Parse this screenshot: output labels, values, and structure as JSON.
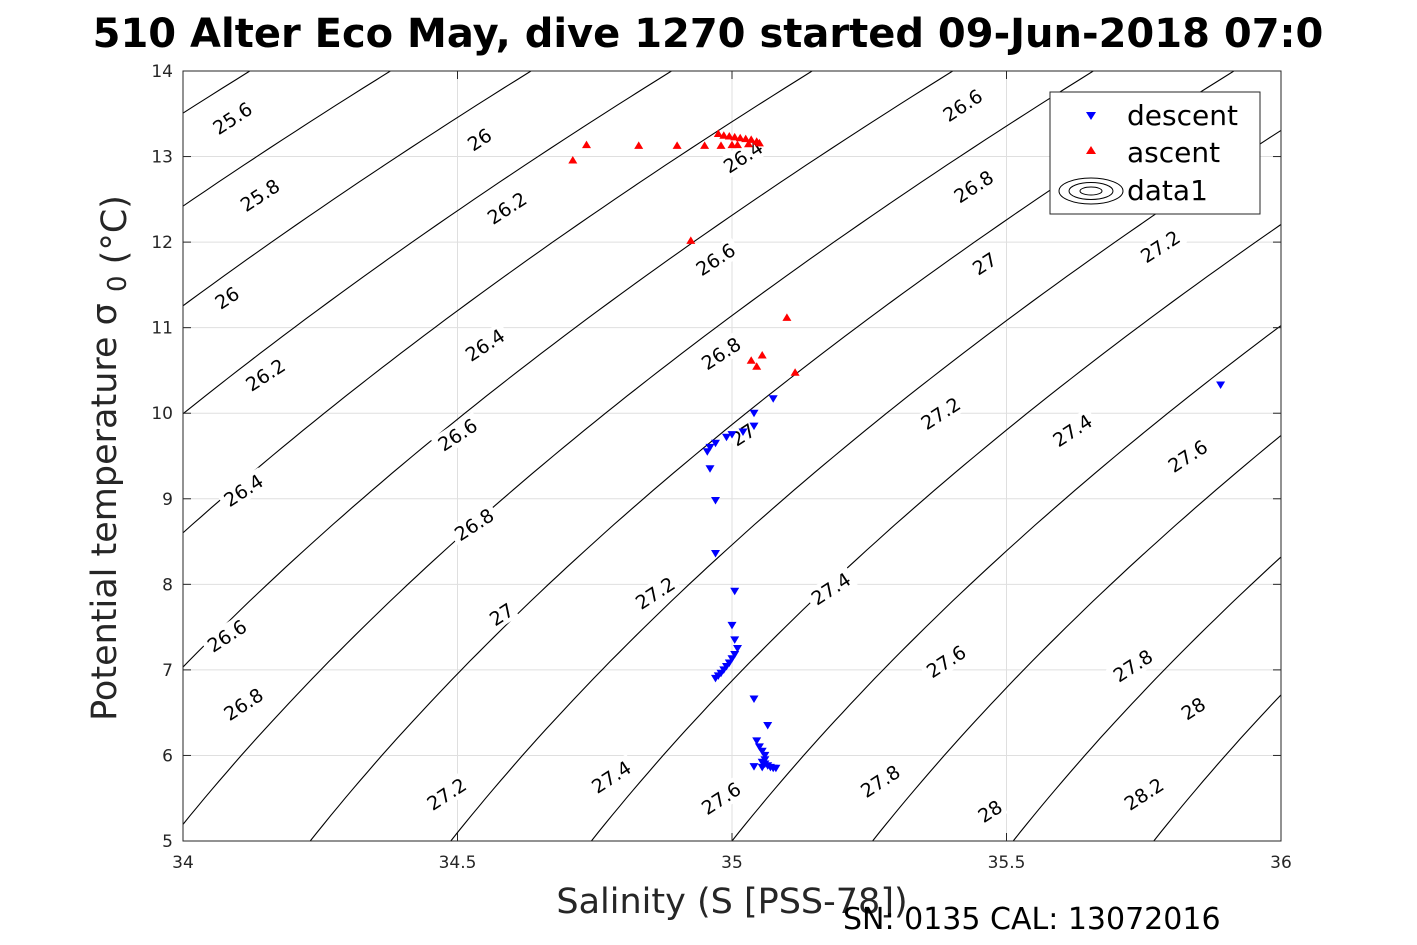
{
  "chart_data": {
    "type": "scatter",
    "title": "510 Alter Eco May, dive 1270 started 09-Jun-2018 07:0",
    "xlabel": "Salinity (S [PSS-78])",
    "ylabel": "Potential temperature",
    "ylabel_symbol": "σ",
    "ylabel_subscript": "0",
    "ylabel_unit": "(°C)",
    "footer": "SN: 0135  CAL: 13072016",
    "xlim": [
      34,
      36
    ],
    "ylim": [
      5,
      14
    ],
    "xticks": [
      34,
      34.5,
      35,
      35.5,
      36
    ],
    "xtick_labels": [
      "34",
      "34.5",
      "35",
      "35.5",
      "36"
    ],
    "yticks": [
      5,
      6,
      7,
      8,
      9,
      10,
      11,
      12,
      13,
      14
    ],
    "ytick_labels": [
      "5",
      "6",
      "7",
      "8",
      "9",
      "10",
      "11",
      "12",
      "13",
      "14"
    ],
    "grid": true,
    "legend_position": "top-right",
    "legend": [
      "descent",
      "ascent",
      "data1"
    ],
    "contour_levels": [
      25.6,
      25.8,
      26,
      26.2,
      26.4,
      26.6,
      26.8,
      27,
      27.2,
      27.4,
      27.6,
      27.8,
      28,
      28.2
    ],
    "contour_labels": [
      {
        "text": "25.6",
        "x": 34.09,
        "y": 13.45
      },
      {
        "text": "25.8",
        "x": 34.14,
        "y": 12.55
      },
      {
        "text": "26",
        "x": 34.08,
        "y": 11.35
      },
      {
        "text": "26.2",
        "x": 34.15,
        "y": 10.45
      },
      {
        "text": "26.4",
        "x": 34.11,
        "y": 9.1
      },
      {
        "text": "26.6",
        "x": 34.08,
        "y": 7.4
      },
      {
        "text": "26.8",
        "x": 34.11,
        "y": 6.6
      },
      {
        "text": "26",
        "x": 34.54,
        "y": 13.2
      },
      {
        "text": "26.2",
        "x": 34.59,
        "y": 12.4
      },
      {
        "text": "26.4",
        "x": 34.55,
        "y": 10.8
      },
      {
        "text": "26.6",
        "x": 34.5,
        "y": 9.75
      },
      {
        "text": "26.8",
        "x": 34.53,
        "y": 8.7
      },
      {
        "text": "27",
        "x": 34.58,
        "y": 7.65
      },
      {
        "text": "27.2",
        "x": 34.48,
        "y": 5.55
      },
      {
        "text": "27.4",
        "x": 34.78,
        "y": 5.75
      },
      {
        "text": "27.2",
        "x": 34.86,
        "y": 7.9
      },
      {
        "text": "26.8",
        "x": 34.98,
        "y": 10.7
      },
      {
        "text": "26.6",
        "x": 34.97,
        "y": 11.8
      },
      {
        "text": "26.4",
        "x": 35.02,
        "y": 13.0
      },
      {
        "text": "27",
        "x": 35.02,
        "y": 9.75
      },
      {
        "text": "27.6",
        "x": 34.98,
        "y": 5.5
      },
      {
        "text": "27.4",
        "x": 35.18,
        "y": 7.95
      },
      {
        "text": "27.2",
        "x": 35.38,
        "y": 10.0
      },
      {
        "text": "27",
        "x": 35.46,
        "y": 11.75
      },
      {
        "text": "26.8",
        "x": 35.44,
        "y": 12.65
      },
      {
        "text": "26.6",
        "x": 35.42,
        "y": 13.6
      },
      {
        "text": "27.8",
        "x": 35.27,
        "y": 5.7
      },
      {
        "text": "28",
        "x": 35.47,
        "y": 5.35
      },
      {
        "text": "27.6",
        "x": 35.39,
        "y": 7.1
      },
      {
        "text": "27.4",
        "x": 35.62,
        "y": 9.8
      },
      {
        "text": "27.2",
        "x": 35.78,
        "y": 11.95
      },
      {
        "text": "27.8",
        "x": 35.73,
        "y": 7.05
      },
      {
        "text": "28",
        "x": 35.84,
        "y": 6.55
      },
      {
        "text": "28.2",
        "x": 35.75,
        "y": 5.55
      },
      {
        "text": "27.6",
        "x": 35.83,
        "y": 9.5
      }
    ],
    "series": [
      {
        "name": "descent",
        "color": "#0000ff",
        "marker": "triangle-down",
        "points": [
          [
            35.89,
            10.33
          ],
          [
            35.075,
            10.17
          ],
          [
            35.04,
            10.0
          ],
          [
            35.04,
            9.85
          ],
          [
            35.02,
            9.78
          ],
          [
            35.0,
            9.75
          ],
          [
            34.99,
            9.72
          ],
          [
            34.97,
            9.65
          ],
          [
            34.96,
            9.6
          ],
          [
            34.955,
            9.55
          ],
          [
            34.96,
            9.35
          ],
          [
            34.97,
            8.98
          ],
          [
            34.97,
            8.36
          ],
          [
            35.005,
            7.92
          ],
          [
            35.0,
            7.52
          ],
          [
            35.005,
            7.35
          ],
          [
            35.01,
            7.25
          ],
          [
            35.005,
            7.18
          ],
          [
            35.0,
            7.13
          ],
          [
            34.995,
            7.08
          ],
          [
            34.99,
            7.04
          ],
          [
            34.985,
            7.0
          ],
          [
            34.98,
            6.96
          ],
          [
            34.975,
            6.93
          ],
          [
            34.97,
            6.9
          ],
          [
            35.04,
            6.66
          ],
          [
            35.065,
            6.35
          ],
          [
            35.045,
            6.17
          ],
          [
            35.05,
            6.1
          ],
          [
            35.055,
            6.05
          ],
          [
            35.06,
            6.0
          ],
          [
            35.06,
            5.95
          ],
          [
            35.055,
            5.92
          ],
          [
            35.06,
            5.9
          ],
          [
            35.065,
            5.88
          ],
          [
            35.07,
            5.86
          ],
          [
            35.075,
            5.85
          ],
          [
            35.08,
            5.85
          ],
          [
            35.055,
            5.86
          ],
          [
            35.04,
            5.87
          ]
        ]
      },
      {
        "name": "ascent",
        "color": "#ff0000",
        "marker": "triangle-up",
        "points": [
          [
            34.71,
            12.96
          ],
          [
            34.735,
            13.14
          ],
          [
            34.83,
            13.13
          ],
          [
            34.9,
            13.13
          ],
          [
            34.95,
            13.13
          ],
          [
            34.98,
            13.13
          ],
          [
            35.0,
            13.14
          ],
          [
            34.975,
            13.27
          ],
          [
            34.985,
            13.25
          ],
          [
            34.995,
            13.24
          ],
          [
            35.005,
            13.23
          ],
          [
            35.015,
            13.22
          ],
          [
            35.025,
            13.21
          ],
          [
            35.035,
            13.2
          ],
          [
            35.045,
            13.18
          ],
          [
            35.05,
            13.16
          ],
          [
            35.01,
            13.14
          ],
          [
            35.03,
            13.15
          ],
          [
            34.925,
            12.02
          ],
          [
            35.1,
            11.12
          ],
          [
            35.035,
            10.62
          ],
          [
            35.055,
            10.68
          ],
          [
            35.045,
            10.55
          ],
          [
            35.115,
            10.48
          ]
        ]
      }
    ]
  }
}
